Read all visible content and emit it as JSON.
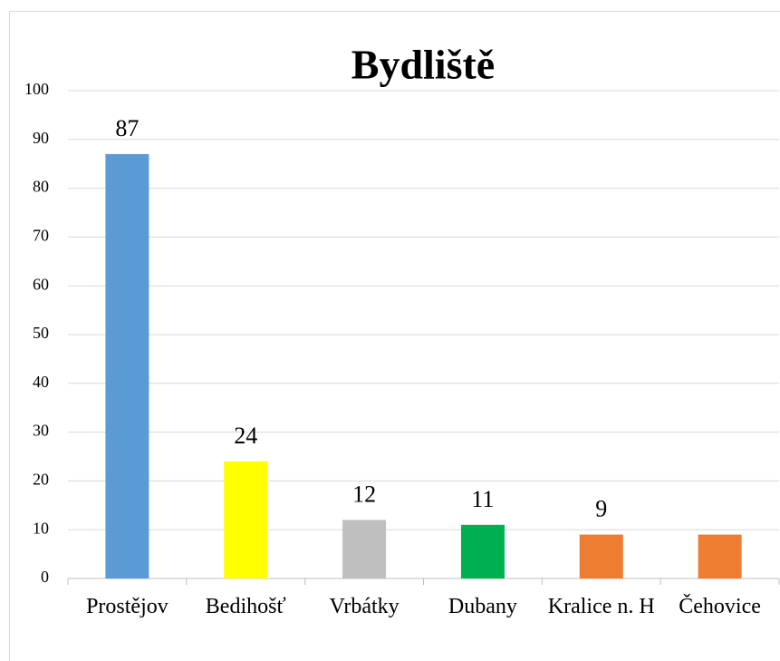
{
  "chart_data": {
    "type": "bar",
    "title": "Bydliště",
    "categories": [
      "Prostějov",
      "Bedihošť",
      "Vrbátky",
      "Dubany",
      "Kralice n. H",
      "Čehovice"
    ],
    "values": [
      87,
      24,
      12,
      11,
      9,
      9
    ],
    "value_labels": [
      "87",
      "24",
      "12",
      "11",
      "9",
      null
    ],
    "colors": [
      "#5b9bd5",
      "#ffff00",
      "#bfbfbf",
      "#00b050",
      "#ed7d31",
      "#ed7d31"
    ],
    "ylim": [
      0,
      100
    ],
    "yticks": [
      0,
      10,
      20,
      30,
      40,
      50,
      60,
      70,
      80,
      90,
      100
    ],
    "grid": true
  }
}
